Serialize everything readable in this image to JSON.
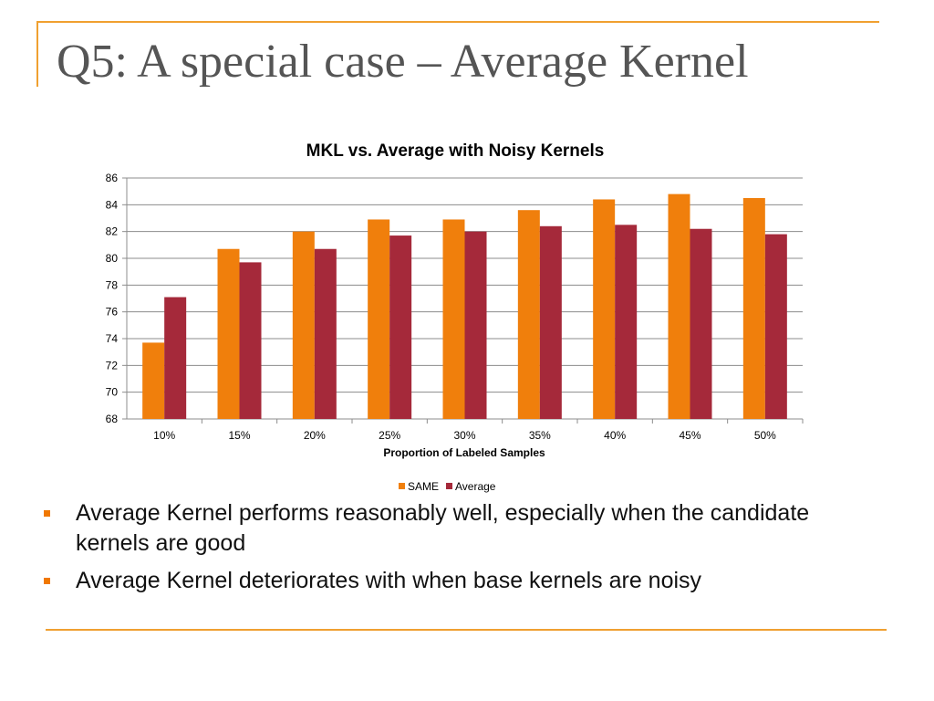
{
  "slide": {
    "title": "Q5: A special case – Average Kernel",
    "bullets": [
      "Average Kernel performs reasonably well, especially when the candidate kernels are good",
      "Average Kernel deteriorates with when base kernels are noisy"
    ],
    "accent_color": "#F0A030",
    "bullet_color": "#F07800"
  },
  "chart_data": {
    "type": "bar",
    "title": "MKL vs. Average with Noisy Kernels",
    "xlabel": "Proportion of Labeled Samples",
    "ylabel": "",
    "ylim": [
      68,
      86
    ],
    "ytick_step": 2,
    "grid": true,
    "legend": "bottom",
    "categories": [
      "10%",
      "15%",
      "20%",
      "25%",
      "30%",
      "35%",
      "40%",
      "45%",
      "50%"
    ],
    "series": [
      {
        "name": "SAME",
        "color": "#F07F0C",
        "values": [
          73.7,
          80.7,
          82.0,
          82.9,
          82.9,
          83.6,
          84.4,
          84.8,
          84.5
        ]
      },
      {
        "name": "Average",
        "color": "#A5293A",
        "values": [
          77.1,
          79.7,
          80.7,
          81.7,
          82.0,
          82.4,
          82.5,
          82.2,
          81.8
        ]
      }
    ]
  }
}
